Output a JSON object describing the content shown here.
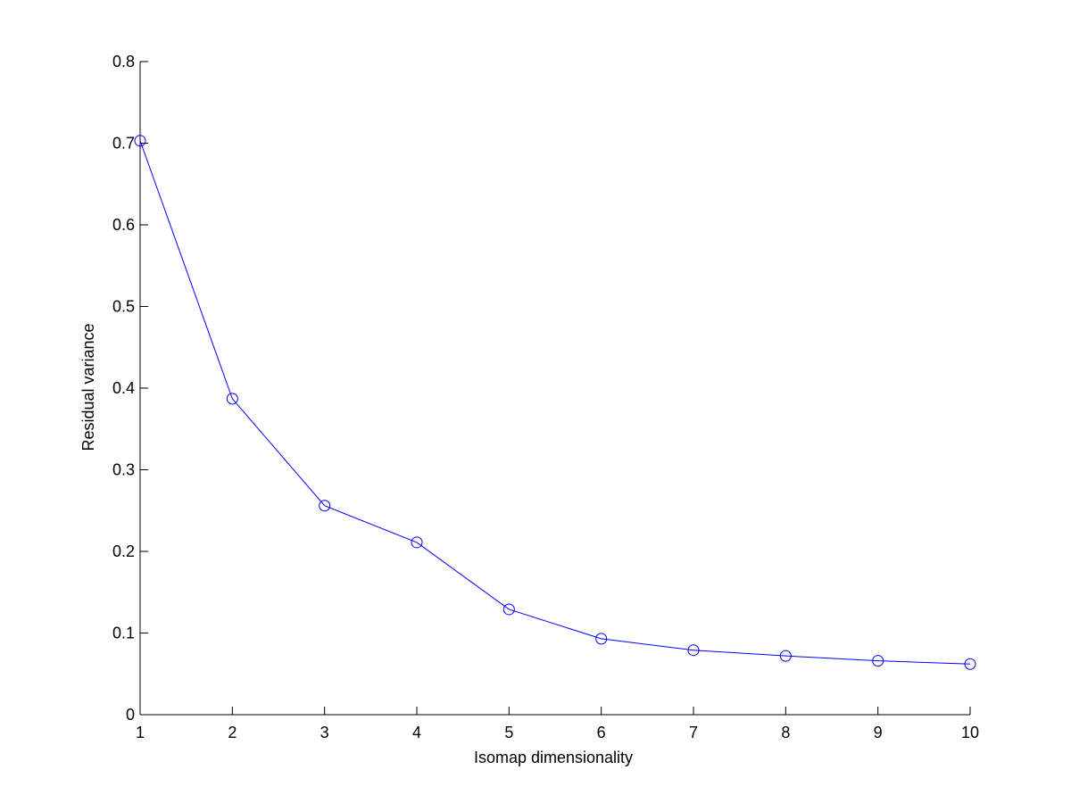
{
  "chart_data": {
    "type": "line",
    "title": "",
    "xlabel": "Isomap dimensionality",
    "ylabel": "Residual variance",
    "x": [
      1,
      2,
      3,
      4,
      5,
      6,
      7,
      8,
      9,
      10
    ],
    "series": [
      {
        "values": [
          0.703,
          0.387,
          0.256,
          0.211,
          0.129,
          0.093,
          0.079,
          0.072,
          0.066,
          0.062
        ],
        "color": "#0000ff",
        "marker": "circle"
      }
    ],
    "xlim": [
      1,
      10
    ],
    "ylim": [
      0,
      0.8
    ],
    "xticks": [
      1,
      2,
      3,
      4,
      5,
      6,
      7,
      8,
      9,
      10
    ],
    "xtick_labels": [
      "1",
      "2",
      "3",
      "4",
      "5",
      "6",
      "7",
      "8",
      "9",
      "10"
    ],
    "yticks": [
      0,
      0.1,
      0.2,
      0.3,
      0.4,
      0.5,
      0.6,
      0.7,
      0.8
    ],
    "ytick_labels": [
      "0",
      "0.1",
      "0.2",
      "0.3",
      "0.4",
      "0.5",
      "0.6",
      "0.7",
      "0.8"
    ],
    "grid": false,
    "legend": "none"
  }
}
